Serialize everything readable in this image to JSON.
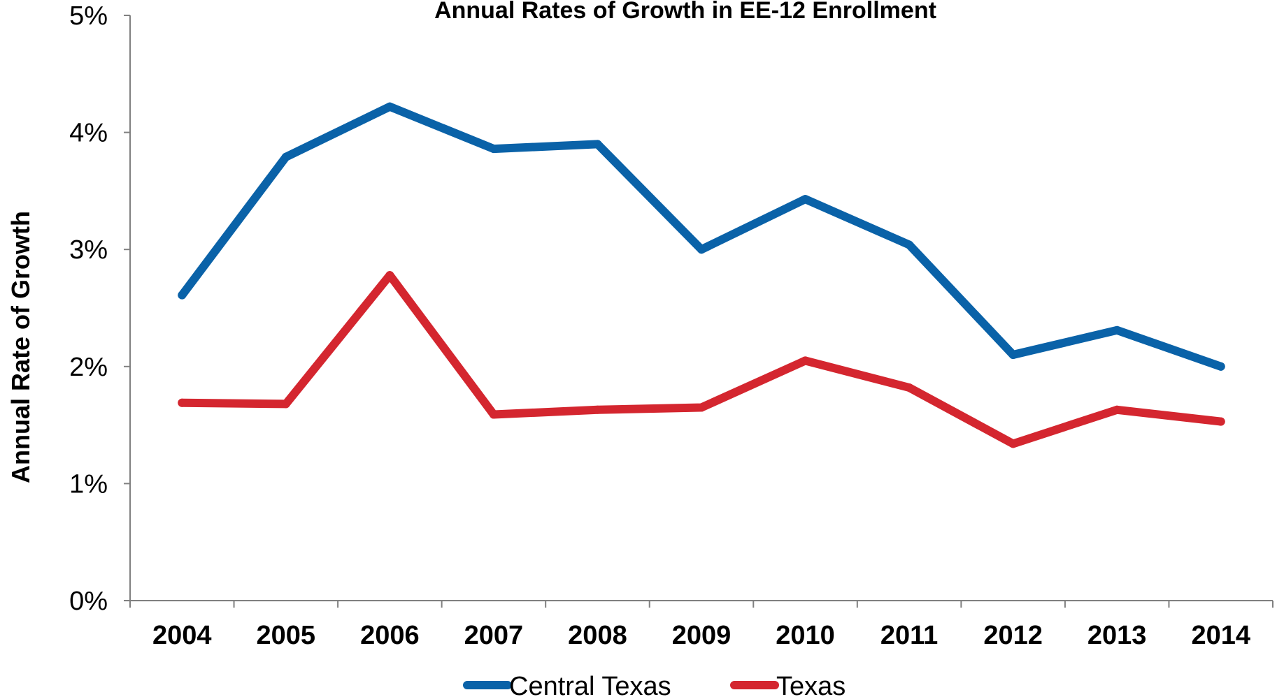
{
  "chart_data": {
    "type": "line",
    "title": "Annual Rates of Growth in EE-12 Enrollment",
    "xlabel": "",
    "ylabel": "Annual Rate of Growth",
    "categories": [
      "2004",
      "2005",
      "2006",
      "2007",
      "2008",
      "2009",
      "2010",
      "2011",
      "2012",
      "2013",
      "2014"
    ],
    "ylim": [
      0,
      5
    ],
    "yticks": [
      0,
      1,
      2,
      3,
      4,
      5
    ],
    "ytick_labels": [
      "0%",
      "1%",
      "2%",
      "3%",
      "4%",
      "5%"
    ],
    "grid": false,
    "legend_position": "bottom",
    "series": [
      {
        "name": "Central Texas",
        "color": "#0a62a8",
        "values": [
          2.61,
          3.79,
          4.22,
          3.86,
          3.9,
          3.0,
          3.43,
          3.04,
          2.1,
          2.31,
          2.0
        ]
      },
      {
        "name": "Texas",
        "color": "#d4262f",
        "values": [
          1.69,
          1.68,
          2.78,
          1.59,
          1.63,
          1.65,
          2.05,
          1.82,
          1.34,
          1.63,
          1.53
        ]
      }
    ]
  }
}
